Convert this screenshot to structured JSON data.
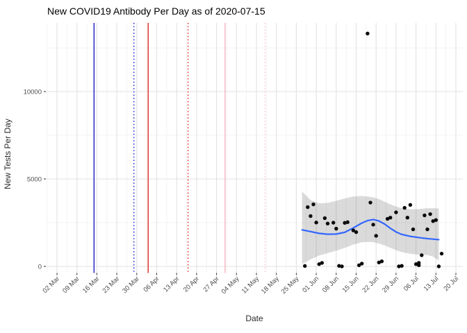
{
  "chart_data": {
    "type": "scatter",
    "title": "New COVID19 Antibody Per Day as of 2020-07-15",
    "xlabel": "Date",
    "ylabel": "New Tests Per Day",
    "as_of_date": "2020-07-15",
    "ylim": [
      0,
      13960
    ],
    "grid": "on",
    "legend": "none",
    "y_ticks": [
      {
        "label": "0",
        "value": 0
      },
      {
        "label": "5000",
        "value": 5000
      },
      {
        "label": "10000",
        "value": 10000
      }
    ],
    "y_minor": [
      2500,
      7500,
      12500
    ],
    "x_ticks": [
      {
        "label": "02 Mar",
        "date": "2020-03-02"
      },
      {
        "label": "09 Mar",
        "date": "2020-03-09"
      },
      {
        "label": "16 Mar",
        "date": "2020-03-16"
      },
      {
        "label": "23 Mar",
        "date": "2020-03-23"
      },
      {
        "label": "30 Mar",
        "date": "2020-03-30"
      },
      {
        "label": "06 Apr",
        "date": "2020-04-06"
      },
      {
        "label": "13 Apr",
        "date": "2020-04-13"
      },
      {
        "label": "20 Apr",
        "date": "2020-04-20"
      },
      {
        "label": "27 Apr",
        "date": "2020-04-27"
      },
      {
        "label": "04 May",
        "date": "2020-05-04"
      },
      {
        "label": "11 May",
        "date": "2020-05-11"
      },
      {
        "label": "18 May",
        "date": "2020-05-18"
      },
      {
        "label": "25 May",
        "date": "2020-05-25"
      },
      {
        "label": "01 Jun",
        "date": "2020-06-01"
      },
      {
        "label": "08 Jun",
        "date": "2020-06-08"
      },
      {
        "label": "15 Jun",
        "date": "2020-06-15"
      },
      {
        "label": "22 Jun",
        "date": "2020-06-22"
      },
      {
        "label": "29 Jun",
        "date": "2020-06-29"
      },
      {
        "label": "06 Jul",
        "date": "2020-07-06"
      },
      {
        "label": "13 Jul",
        "date": "2020-07-13"
      },
      {
        "label": "20 Jul",
        "date": "2020-07-20"
      }
    ],
    "event_lines": [
      {
        "date": "2020-03-15",
        "color": "#0000CD",
        "style": "solid"
      },
      {
        "date": "2020-03-29",
        "color": "#0000CD",
        "style": "dotted"
      },
      {
        "date": "2020-04-03",
        "color": "#DF0D0D",
        "style": "solid"
      },
      {
        "date": "2020-04-17",
        "color": "#DF0D0D",
        "style": "dotted"
      },
      {
        "date": "2020-04-30",
        "color": "#F9A9BC",
        "style": "solid"
      },
      {
        "date": "2020-05-14",
        "color": "#FBBFCD",
        "style": "dotted"
      }
    ],
    "points_color": "#0b0b0b",
    "points": [
      {
        "date": "2020-05-28",
        "value": 25
      },
      {
        "date": "2020-05-29",
        "value": 3390
      },
      {
        "date": "2020-05-30",
        "value": 2880
      },
      {
        "date": "2020-05-31",
        "value": 3550
      },
      {
        "date": "2020-06-01",
        "value": 2510
      },
      {
        "date": "2020-06-02",
        "value": 130
      },
      {
        "date": "2020-06-03",
        "value": 200
      },
      {
        "date": "2020-06-04",
        "value": 2760
      },
      {
        "date": "2020-06-05",
        "value": 2450
      },
      {
        "date": "2020-06-07",
        "value": 2500
      },
      {
        "date": "2020-06-08",
        "value": 2160
      },
      {
        "date": "2020-06-09",
        "value": 30
      },
      {
        "date": "2020-06-10",
        "value": 0
      },
      {
        "date": "2020-06-11",
        "value": 2490
      },
      {
        "date": "2020-06-12",
        "value": 2530
      },
      {
        "date": "2020-06-14",
        "value": 2060
      },
      {
        "date": "2020-06-15",
        "value": 1960
      },
      {
        "date": "2020-06-16",
        "value": 65
      },
      {
        "date": "2020-06-17",
        "value": 160
      },
      {
        "date": "2020-06-19",
        "value": 13320
      },
      {
        "date": "2020-06-20",
        "value": 3650
      },
      {
        "date": "2020-06-21",
        "value": 2390
      },
      {
        "date": "2020-06-22",
        "value": 1750
      },
      {
        "date": "2020-06-23",
        "value": 225
      },
      {
        "date": "2020-06-24",
        "value": 290
      },
      {
        "date": "2020-06-26",
        "value": 2720
      },
      {
        "date": "2020-06-27",
        "value": 2790
      },
      {
        "date": "2020-06-29",
        "value": 3090
      },
      {
        "date": "2020-06-30",
        "value": 0
      },
      {
        "date": "2020-07-01",
        "value": 30
      },
      {
        "date": "2020-07-02",
        "value": 3350
      },
      {
        "date": "2020-07-03",
        "value": 2790
      },
      {
        "date": "2020-07-04",
        "value": 3520
      },
      {
        "date": "2020-07-05",
        "value": 2120
      },
      {
        "date": "2020-07-06",
        "value": 130
      },
      {
        "date": "2020-07-07",
        "value": 65
      },
      {
        "date": "2020-07-07",
        "value": 200
      },
      {
        "date": "2020-07-08",
        "value": 640
      },
      {
        "date": "2020-07-09",
        "value": 2920
      },
      {
        "date": "2020-07-10",
        "value": 2120
      },
      {
        "date": "2020-07-11",
        "value": 2990
      },
      {
        "date": "2020-07-12",
        "value": 2590
      },
      {
        "date": "2020-07-13",
        "value": 2650
      },
      {
        "date": "2020-07-14",
        "value": 0
      },
      {
        "date": "2020-07-15",
        "value": 730
      }
    ],
    "smooth": {
      "color": "#3366FF",
      "points": [
        {
          "date": "2020-05-27",
          "value": 2090
        },
        {
          "date": "2020-05-30",
          "value": 1990
        },
        {
          "date": "2020-06-02",
          "value": 1890
        },
        {
          "date": "2020-06-05",
          "value": 1840
        },
        {
          "date": "2020-06-08",
          "value": 1850
        },
        {
          "date": "2020-06-11",
          "value": 1950
        },
        {
          "date": "2020-06-14",
          "value": 2200
        },
        {
          "date": "2020-06-17",
          "value": 2480
        },
        {
          "date": "2020-06-19",
          "value": 2620
        },
        {
          "date": "2020-06-21",
          "value": 2680
        },
        {
          "date": "2020-06-23",
          "value": 2600
        },
        {
          "date": "2020-06-25",
          "value": 2420
        },
        {
          "date": "2020-06-27",
          "value": 2180
        },
        {
          "date": "2020-06-29",
          "value": 1970
        },
        {
          "date": "2020-07-01",
          "value": 1830
        },
        {
          "date": "2020-07-04",
          "value": 1720
        },
        {
          "date": "2020-07-07",
          "value": 1650
        },
        {
          "date": "2020-07-10",
          "value": 1590
        },
        {
          "date": "2020-07-12",
          "value": 1560
        },
        {
          "date": "2020-07-14",
          "value": 1530
        }
      ]
    },
    "ribbon": {
      "color": "#7a7a7a",
      "opacity": 0.28,
      "points": [
        {
          "date": "2020-05-27",
          "lo": 130,
          "hi": 4280
        },
        {
          "date": "2020-05-30",
          "lo": 400,
          "hi": 3800
        },
        {
          "date": "2020-06-02",
          "lo": 620,
          "hi": 3610
        },
        {
          "date": "2020-06-05",
          "lo": 760,
          "hi": 3630
        },
        {
          "date": "2020-06-08",
          "lo": 900,
          "hi": 3750
        },
        {
          "date": "2020-06-11",
          "lo": 1060,
          "hi": 3890
        },
        {
          "date": "2020-06-14",
          "lo": 1250,
          "hi": 4000
        },
        {
          "date": "2020-06-17",
          "lo": 1380,
          "hi": 4030
        },
        {
          "date": "2020-06-19",
          "lo": 1400,
          "hi": 4000
        },
        {
          "date": "2020-06-21",
          "lo": 1390,
          "hi": 3950
        },
        {
          "date": "2020-06-23",
          "lo": 1310,
          "hi": 3850
        },
        {
          "date": "2020-06-25",
          "lo": 1200,
          "hi": 3700
        },
        {
          "date": "2020-06-27",
          "lo": 1060,
          "hi": 3550
        },
        {
          "date": "2020-06-29",
          "lo": 930,
          "hi": 3420
        },
        {
          "date": "2020-07-01",
          "lo": 820,
          "hi": 3330
        },
        {
          "date": "2020-07-04",
          "lo": 720,
          "hi": 3270
        },
        {
          "date": "2020-07-07",
          "lo": 670,
          "hi": 3280
        },
        {
          "date": "2020-07-10",
          "lo": 650,
          "hi": 3330
        },
        {
          "date": "2020-07-12",
          "lo": 560,
          "hi": 3330
        },
        {
          "date": "2020-07-14",
          "lo": 330,
          "hi": 3310
        }
      ]
    },
    "grid_colors": {
      "major": "#e2e2e2",
      "minor": "#efefef"
    },
    "tick_mark_color": "#2b2b2b"
  }
}
